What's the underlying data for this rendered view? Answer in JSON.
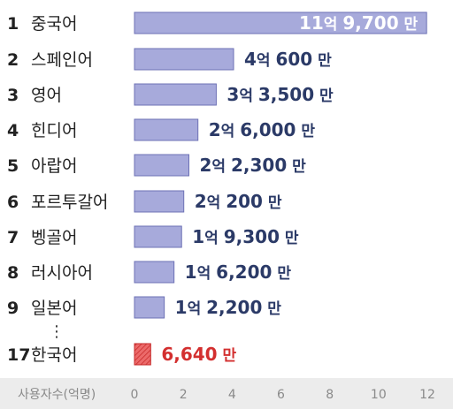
{
  "chart_data": {
    "type": "bar",
    "orientation": "horizontal",
    "xlabel": "사용자수(억명)",
    "xlim": [
      0,
      12
    ],
    "xticks": [
      "0",
      "2",
      "4",
      "6",
      "8",
      "10",
      "12"
    ],
    "gap_marker": "⋮",
    "bars": [
      {
        "rank": "1",
        "label": "중국어",
        "value": 11.97,
        "parts": [
          {
            "t": "11",
            "c": "big"
          },
          {
            "t": "억 ",
            "c": "unit"
          },
          {
            "t": "9,700",
            "c": "big"
          },
          {
            "t": " 만",
            "c": "unit"
          }
        ],
        "label_inside": true
      },
      {
        "rank": "2",
        "label": "스페인어",
        "value": 4.06,
        "parts": [
          {
            "t": "4",
            "c": "big"
          },
          {
            "t": "억 ",
            "c": "unit"
          },
          {
            "t": "600",
            "c": "big"
          },
          {
            "t": " 만",
            "c": "unit"
          }
        ]
      },
      {
        "rank": "3",
        "label": "영어",
        "value": 3.35,
        "parts": [
          {
            "t": "3",
            "c": "big"
          },
          {
            "t": "억 ",
            "c": "unit"
          },
          {
            "t": "3,500",
            "c": "big"
          },
          {
            "t": " 만",
            "c": "unit"
          }
        ]
      },
      {
        "rank": "4",
        "label": "힌디어",
        "value": 2.6,
        "parts": [
          {
            "t": "2",
            "c": "big"
          },
          {
            "t": "억 ",
            "c": "unit"
          },
          {
            "t": "6,000",
            "c": "big"
          },
          {
            "t": " 만",
            "c": "unit"
          }
        ]
      },
      {
        "rank": "5",
        "label": "아랍어",
        "value": 2.23,
        "parts": [
          {
            "t": "2",
            "c": "big"
          },
          {
            "t": "억 ",
            "c": "unit"
          },
          {
            "t": "2,300",
            "c": "big"
          },
          {
            "t": " 만",
            "c": "unit"
          }
        ]
      },
      {
        "rank": "6",
        "label": "포르투갈어",
        "value": 2.02,
        "parts": [
          {
            "t": "2",
            "c": "big"
          },
          {
            "t": "억 ",
            "c": "unit"
          },
          {
            "t": "200",
            "c": "big"
          },
          {
            "t": " 만",
            "c": "unit"
          }
        ]
      },
      {
        "rank": "7",
        "label": "벵골어",
        "value": 1.93,
        "parts": [
          {
            "t": "1",
            "c": "big"
          },
          {
            "t": "억 ",
            "c": "unit"
          },
          {
            "t": "9,300",
            "c": "big"
          },
          {
            "t": " 만",
            "c": "unit"
          }
        ]
      },
      {
        "rank": "8",
        "label": "러시아어",
        "value": 1.62,
        "parts": [
          {
            "t": "1",
            "c": "big"
          },
          {
            "t": "억 ",
            "c": "unit"
          },
          {
            "t": "6,200",
            "c": "big"
          },
          {
            "t": " 만",
            "c": "unit"
          }
        ]
      },
      {
        "rank": "9",
        "label": "일본어",
        "value": 1.22,
        "parts": [
          {
            "t": "1",
            "c": "big"
          },
          {
            "t": "억 ",
            "c": "unit"
          },
          {
            "t": "2,200",
            "c": "big"
          },
          {
            "t": " 만",
            "c": "unit"
          }
        ]
      },
      {
        "rank": "17",
        "label": "한국어",
        "value": 0.664,
        "parts": [
          {
            "t": "6,640",
            "c": "big"
          },
          {
            "t": " 만",
            "c": "unit"
          }
        ],
        "highlight": true
      }
    ],
    "colors": {
      "bar_fill": "#a7aadb",
      "bar_stroke": "#6d71b5",
      "value_text": "#2b3a67",
      "value_text_inside": "#ffffff",
      "highlight_fill": "#ec6a6a",
      "highlight_stroke": "#c62828",
      "highlight_text": "#d32f2f",
      "axis_band": "#ececec"
    }
  }
}
